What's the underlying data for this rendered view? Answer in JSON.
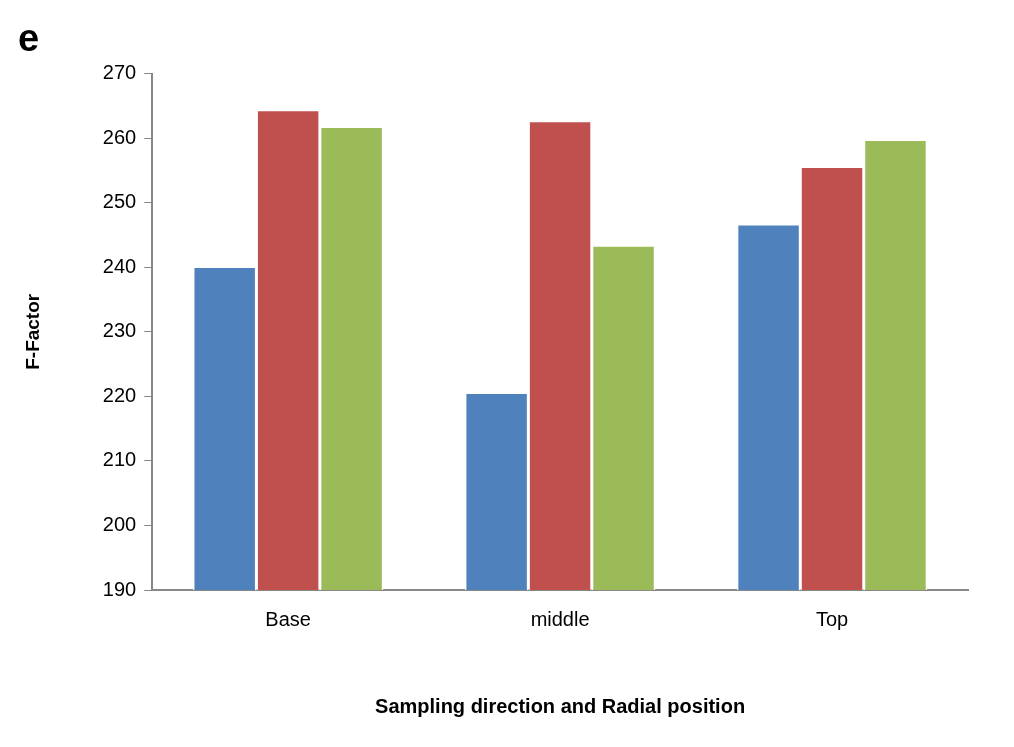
{
  "chart_data": {
    "type": "bar",
    "title": "e",
    "xlabel": "Sampling direction and Radial position",
    "ylabel": "F-Factor",
    "categories": [
      "Base",
      "middle",
      "Top"
    ],
    "series": [
      {
        "color": "#4f81bd",
        "values": [
          240.1,
          220.6,
          246.7
        ]
      },
      {
        "color": "#c0504d",
        "values": [
          264.4,
          262.7,
          255.6
        ]
      },
      {
        "color": "#9bbb59",
        "values": [
          261.8,
          243.4,
          259.8
        ]
      }
    ],
    "ylim": [
      190,
      270
    ],
    "yticks": [
      190,
      200,
      210,
      220,
      230,
      240,
      250,
      260,
      270
    ],
    "grid": false,
    "legend": false
  }
}
